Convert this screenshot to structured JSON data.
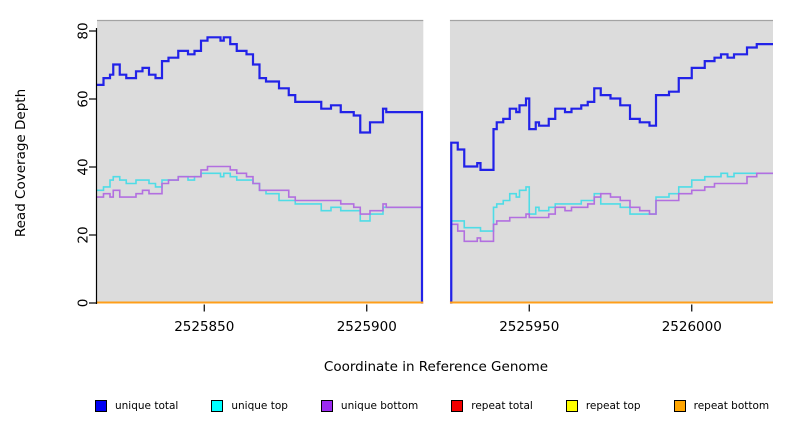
{
  "chart_data": {
    "type": "line",
    "subtype": "step-after-coverage",
    "title": "",
    "xlabel": "Coordinate in Reference Genome",
    "ylabel": "Read Coverage Depth",
    "xlim": [
      2525817,
      2526025
    ],
    "ylim": [
      0,
      80
    ],
    "grid": false,
    "plot_background": "#dcdcdc",
    "outer_background": "#ffffff",
    "top_border_color": "#a3a3a3",
    "x_ticks": [
      {
        "value": 2525850,
        "label": "2525850"
      },
      {
        "value": 2525900,
        "label": "2525900"
      },
      {
        "value": 2525950,
        "label": "2525950"
      },
      {
        "value": 2526000,
        "label": "2526000"
      }
    ],
    "y_ticks": [
      {
        "value": 0,
        "label": "0"
      },
      {
        "value": 20,
        "label": "20"
      },
      {
        "value": 40,
        "label": "40"
      },
      {
        "value": 60,
        "label": "60"
      },
      {
        "value": 80,
        "label": "80"
      }
    ],
    "coverage_gap": {
      "from": 2525917,
      "to": 2525926,
      "fill": "#ffffff"
    },
    "x": [
      2525817,
      2525819,
      2525821,
      2525822,
      2525824,
      2525826,
      2525829,
      2525831,
      2525833,
      2525835,
      2525837,
      2525839,
      2525842,
      2525845,
      2525847,
      2525849,
      2525851,
      2525855,
      2525856,
      2525858,
      2525860,
      2525863,
      2525865,
      2525867,
      2525869,
      2525873,
      2525876,
      2525878,
      2525886,
      2525889,
      2525892,
      2525896,
      2525898,
      2525901,
      2525905,
      2525906,
      2525917,
      2525926,
      2525928,
      2525930,
      2525934,
      2525935,
      2525939,
      2525940,
      2525942,
      2525944,
      2525946,
      2525947,
      2525949,
      2525950,
      2525952,
      2525953,
      2525956,
      2525958,
      2525961,
      2525963,
      2525966,
      2525968,
      2525970,
      2525972,
      2525975,
      2525978,
      2525981,
      2525984,
      2525987,
      2525989,
      2525993,
      2525996,
      2526000,
      2526004,
      2526007,
      2526009,
      2526011,
      2526013,
      2526017,
      2526020
    ],
    "series": [
      {
        "name": "unique total",
        "line_color": "#2222e8",
        "line_width": 2.2,
        "values": [
          64,
          66,
          67,
          70,
          67,
          66,
          68,
          69,
          67,
          66,
          71,
          72,
          74,
          73,
          74,
          77,
          78,
          77,
          78,
          76,
          74,
          73,
          70,
          66,
          65,
          63,
          61,
          59,
          57,
          58,
          56,
          55,
          50,
          53,
          57,
          56,
          0,
          47,
          45,
          40,
          41,
          39,
          51,
          53,
          54,
          57,
          56,
          58,
          60,
          51,
          53,
          52,
          54,
          57,
          56,
          57,
          58,
          59,
          63,
          61,
          60,
          58,
          54,
          53,
          52,
          61,
          62,
          66,
          69,
          71,
          72,
          73,
          72,
          73,
          75,
          76
        ]
      },
      {
        "name": "unique top",
        "line_color": "#4fdce6",
        "line_width": 1.6,
        "values": [
          33,
          34,
          36,
          37,
          36,
          35,
          36,
          36,
          35,
          34,
          36,
          36,
          37,
          36,
          37,
          38,
          38,
          37,
          38,
          37,
          36,
          36,
          35,
          33,
          32,
          30,
          30,
          29,
          27,
          28,
          27,
          27,
          24,
          26,
          28,
          28,
          0,
          24,
          24,
          22,
          22,
          21,
          28,
          29,
          30,
          32,
          31,
          33,
          34,
          26,
          28,
          27,
          28,
          29,
          29,
          29,
          30,
          30,
          32,
          29,
          29,
          28,
          26,
          26,
          26,
          31,
          32,
          34,
          36,
          37,
          37,
          38,
          37,
          38,
          38,
          38
        ]
      },
      {
        "name": "unique bottom",
        "line_color": "#b26fe0",
        "line_width": 1.6,
        "values": [
          31,
          32,
          31,
          33,
          31,
          31,
          32,
          33,
          32,
          32,
          35,
          36,
          37,
          37,
          37,
          39,
          40,
          40,
          40,
          39,
          38,
          37,
          35,
          33,
          33,
          33,
          31,
          30,
          30,
          30,
          29,
          28,
          26,
          27,
          29,
          28,
          0,
          23,
          21,
          18,
          19,
          18,
          23,
          24,
          24,
          25,
          25,
          25,
          26,
          25,
          25,
          25,
          26,
          28,
          27,
          28,
          28,
          29,
          31,
          32,
          31,
          30,
          28,
          27,
          26,
          30,
          30,
          32,
          33,
          34,
          35,
          35,
          35,
          35,
          37,
          38
        ]
      },
      {
        "name": "repeat total",
        "line_color": "#dd0000",
        "line_width": 1.4,
        "constant": 0
      },
      {
        "name": "repeat top",
        "line_color": "#f5e800",
        "line_width": 1.4,
        "constant": 0
      },
      {
        "name": "repeat bottom",
        "line_color": "#ff9e1a",
        "line_width": 1.8,
        "constant": 0
      }
    ],
    "legend_position": "bottom-horizontal"
  },
  "legend": {
    "items": [
      {
        "label": "unique total",
        "color": "#0000f2"
      },
      {
        "label": "unique top",
        "color": "#00ffff"
      },
      {
        "label": "unique bottom",
        "color": "#9c2bf0"
      },
      {
        "label": "repeat total",
        "color": "#f20000"
      },
      {
        "label": "repeat top",
        "color": "#ffff00"
      },
      {
        "label": "repeat bottom",
        "color": "#ffa500"
      }
    ]
  }
}
